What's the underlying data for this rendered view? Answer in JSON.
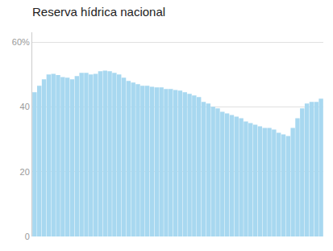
{
  "chart_data": {
    "type": "bar",
    "title": "Reserva hídrica nacional",
    "values": [
      44.5,
      46.5,
      48.5,
      50.0,
      50.2,
      49.8,
      49.2,
      49.0,
      48.5,
      49.5,
      50.5,
      50.5,
      50.0,
      50.2,
      51.0,
      51.2,
      51.0,
      50.5,
      50.0,
      49.0,
      48.0,
      47.5,
      47.0,
      46.5,
      46.5,
      46.2,
      46.0,
      46.0,
      45.5,
      45.5,
      45.2,
      45.0,
      44.5,
      44.0,
      43.5,
      43.0,
      41.5,
      41.0,
      40.0,
      39.5,
      38.5,
      38.0,
      37.5,
      37.0,
      36.5,
      35.5,
      35.0,
      34.5,
      34.0,
      33.5,
      33.5,
      33.0,
      32.0,
      31.5,
      31.0,
      33.5,
      36.5,
      39.5,
      41.0,
      41.5,
      41.5,
      42.5
    ],
    "color": "#a8d8f0",
    "ylim": [
      0,
      63
    ],
    "yticks": [
      0,
      20,
      40,
      {
        "value": 60,
        "label": "60%"
      }
    ],
    "grid": true,
    "tick_labels": "y"
  }
}
